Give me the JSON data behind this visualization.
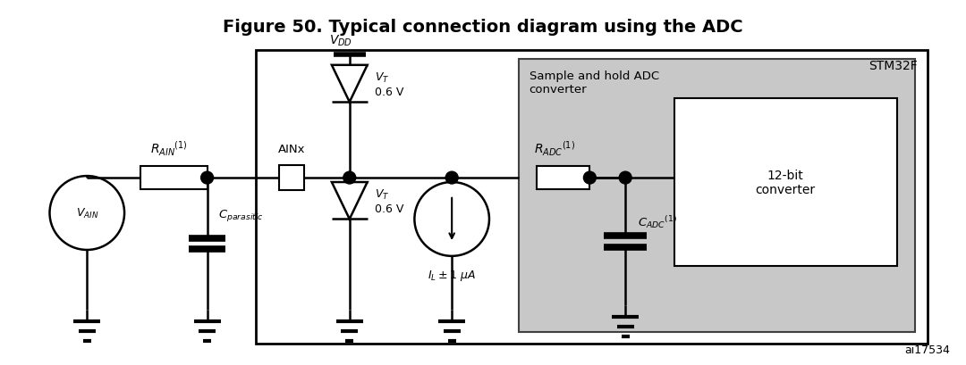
{
  "title": "Figure 50. Typical connection diagram using the ADC",
  "title_fontsize": 14,
  "bg_color": "#ffffff",
  "figure_note": "ai17534",
  "stm32f_label": "STM32F",
  "sample_hold_label": "Sample and hold ADC\nconverter",
  "bit_converter_label": "12-bit\nconverter",
  "gray_color": "#c8c8c8",
  "line_color": "#000000",
  "line_lw": 1.8
}
